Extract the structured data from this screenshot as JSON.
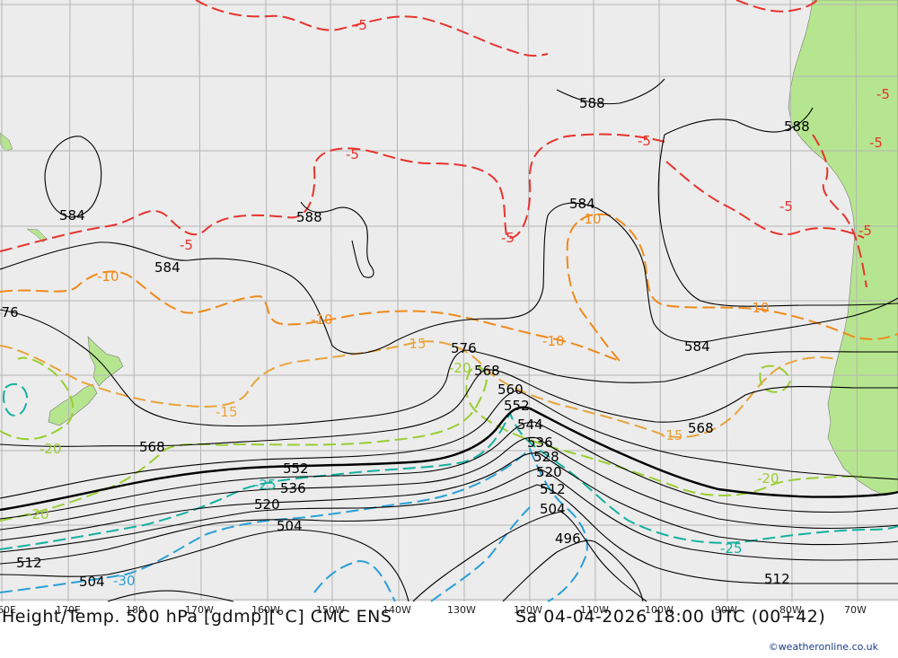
{
  "footer": {
    "title": "Height/Temp. 500 hPa [gdmp][°C] CMC ENS",
    "time": "Sa 04-04-2026 18:00 UTC (00+42)",
    "credit": "©weatheronline.co.uk"
  },
  "longitude_labels": [
    "160E",
    "170E",
    "180",
    "170W",
    "160W",
    "150W",
    "140W",
    "130W",
    "120W",
    "110W",
    "100W",
    "90W",
    "80W",
    "70W"
  ],
  "height_labels": [
    "588",
    "588",
    "588",
    "584",
    "584",
    "584",
    "584",
    "576",
    "576",
    "568",
    "568",
    "568",
    "560",
    "552",
    "552",
    "544",
    "536",
    "536",
    "528",
    "520",
    "520",
    "512",
    "512",
    "512",
    "504",
    "504",
    "504",
    "496"
  ],
  "temp_labels": [
    "-5",
    "-5",
    "-5",
    "-5",
    "-5",
    "-5",
    "-5",
    "-5",
    "-5",
    "-10",
    "-10",
    "-10",
    "-10",
    "-10",
    "-15",
    "-15",
    "-15",
    "-20",
    "-20",
    "-20",
    "-20",
    "-25",
    "-25",
    "-30"
  ],
  "colors": {
    "ocean": "#ececec",
    "land": "#b6e58f",
    "grid": "#b4b4b4",
    "height_contour": "#000000",
    "temp_minus5": "#e8332e",
    "temp_minus10": "#ef8a1c",
    "temp_minus15": "#e8a43a",
    "temp_minus20": "#9acd32",
    "temp_minus25": "#14b0a0",
    "temp_minus30": "#2a9fd6"
  }
}
